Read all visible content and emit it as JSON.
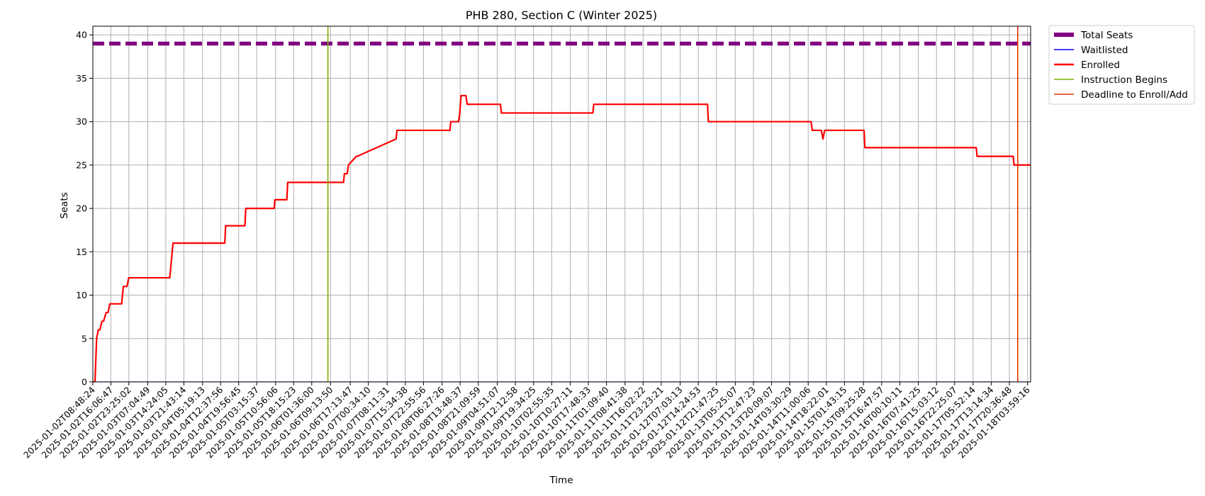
{
  "chart_data": {
    "type": "line",
    "title": "PHB 280, Section C (Winter 2025)",
    "xlabel": "Time",
    "ylabel": "Seats",
    "ylim": [
      0,
      41
    ],
    "yticks": [
      0,
      5,
      10,
      15,
      20,
      25,
      30,
      35,
      40
    ],
    "x_range": [
      "2025-01-02T08:48:24",
      "2025-01-18T05:14:00"
    ],
    "xtick_labels": [
      "2025-01-02T08:48:24",
      "2025-01-02T16:06:47",
      "2025-01-02T23:25:02",
      "2025-01-03T07:04:49",
      "2025-01-03T14:24:05",
      "2025-01-03T21:43:14",
      "2025-01-04T05:19:13",
      "2025-01-04T12:37:56",
      "2025-01-04T19:56:45",
      "2025-01-05T03:15:37",
      "2025-01-05T10:56:06",
      "2025-01-05T18:15:23",
      "2025-01-06T01:36:00",
      "2025-01-06T09:13:50",
      "2025-01-06T17:13:47",
      "2025-01-07T00:34:10",
      "2025-01-07T08:11:31",
      "2025-01-07T15:34:38",
      "2025-01-07T22:55:56",
      "2025-01-08T06:27:26",
      "2025-01-08T13:48:37",
      "2025-01-08T21:09:59",
      "2025-01-09T04:51:07",
      "2025-01-09T12:12:58",
      "2025-01-09T19:34:25",
      "2025-01-10T02:55:35",
      "2025-01-10T10:27:11",
      "2025-01-10T17:48:33",
      "2025-01-11T01:09:40",
      "2025-01-11T08:41:38",
      "2025-01-11T16:02:22",
      "2025-01-11T23:23:21",
      "2025-01-12T07:03:13",
      "2025-01-12T14:24:53",
      "2025-01-12T21:47:25",
      "2025-01-13T05:25:07",
      "2025-01-13T12:47:23",
      "2025-01-13T20:09:07",
      "2025-01-14T03:30:29",
      "2025-01-14T11:00:06",
      "2025-01-14T18:22:01",
      "2025-01-15T01:43:15",
      "2025-01-15T09:25:28",
      "2025-01-15T16:47:57",
      "2025-01-16T00:10:11",
      "2025-01-16T07:41:25",
      "2025-01-16T15:03:12",
      "2025-01-16T22:25:07",
      "2025-01-17T05:52:14",
      "2025-01-17T13:14:34",
      "2025-01-17T20:36:48",
      "2025-01-18T03:59:16"
    ],
    "grid": true,
    "legend_position": "outside-right-top",
    "series": [
      {
        "name": "Total Seats",
        "kind": "line",
        "color": "#800080",
        "style": "dashed",
        "x": [
          "2025-01-02T08:48:24",
          "2025-01-18T05:14:00"
        ],
        "y": [
          39,
          39
        ]
      },
      {
        "name": "Waitlisted",
        "kind": "line",
        "color": "#0000ff",
        "style": "solid",
        "x": [
          "2025-01-02T08:48:24",
          "2025-01-18T05:14:00"
        ],
        "y": [
          0,
          0
        ]
      },
      {
        "name": "Enrolled",
        "kind": "line",
        "color": "#ff0000",
        "style": "solid",
        "x": [
          "2025-01-02T08:48:24",
          "2025-01-02T09:40:00",
          "2025-01-02T10:20:00",
          "2025-01-02T11:00:00",
          "2025-01-02T11:40:00",
          "2025-01-02T12:30:00",
          "2025-01-02T13:10:00",
          "2025-01-02T14:10:00",
          "2025-01-02T15:00:00",
          "2025-01-02T15:40:00",
          "2025-01-02T16:30:00",
          "2025-01-02T17:30:00",
          "2025-01-02T18:00:00",
          "2025-01-02T20:30:00",
          "2025-01-02T21:10:00",
          "2025-01-02T22:40:00",
          "2025-01-02T23:20:00",
          "2025-01-03T16:00:00",
          "2025-01-03T16:40:00",
          "2025-01-03T17:20:00",
          "2025-01-04T14:20:00",
          "2025-01-04T14:40:00",
          "2025-01-04T22:30:00",
          "2025-01-04T22:50:00",
          "2025-01-05T10:20:00",
          "2025-01-05T10:40:00",
          "2025-01-05T15:30:00",
          "2025-01-05T15:50:00",
          "2025-01-06T10:40:00",
          "2025-01-06T11:00:00",
          "2025-01-06T14:30:00",
          "2025-01-06T14:50:00",
          "2025-01-06T16:00:00",
          "2025-01-06T16:30:00",
          "2025-01-06T19:40:00",
          "2025-01-06T20:00:00",
          "2025-01-07T11:50:00",
          "2025-01-07T12:10:00",
          "2025-01-08T09:40:00",
          "2025-01-08T10:00:00",
          "2025-01-08T13:10:00",
          "2025-01-08T13:40:00",
          "2025-01-08T14:10:00",
          "2025-01-08T14:40:00",
          "2025-01-08T16:10:00",
          "2025-01-08T16:40:00",
          "2025-01-08T18:40:00",
          "2025-01-08T19:00:00",
          "2025-01-09T06:10:00",
          "2025-01-09T06:30:00",
          "2025-01-10T19:40:00",
          "2025-01-10T20:00:00",
          "2025-01-12T18:10:00",
          "2025-01-12T18:30:00",
          "2025-01-14T12:10:00",
          "2025-01-14T12:40:00",
          "2025-01-14T16:20:00",
          "2025-01-14T17:00:00",
          "2025-01-14T17:40:00",
          "2025-01-15T09:40:00",
          "2025-01-15T10:00:00",
          "2025-01-17T07:10:00",
          "2025-01-17T07:30:00",
          "2025-01-17T22:10:00",
          "2025-01-17T22:30:00",
          "2025-01-18T05:14:00"
        ],
        "y": [
          0,
          0,
          5,
          6,
          6,
          7,
          7,
          8,
          8,
          9,
          9,
          9,
          9,
          9,
          11,
          11,
          12,
          12,
          14,
          16,
          16,
          18,
          18,
          20,
          20,
          21,
          21,
          23,
          23,
          23,
          23,
          24,
          24,
          25,
          26,
          26,
          28,
          29,
          29,
          30,
          30,
          31,
          33,
          33,
          33,
          32,
          32,
          32,
          32,
          31,
          31,
          32,
          32,
          30,
          30,
          29,
          29,
          28,
          29,
          29,
          27,
          27,
          26,
          26,
          25,
          25
        ]
      },
      {
        "name": "Instruction Begins",
        "kind": "vline",
        "color": "#7aaf00",
        "x": "2025-01-06T08:10:00"
      },
      {
        "name": "Deadline to Enroll/Add",
        "kind": "vline",
        "color": "#dd3300",
        "x": "2025-01-17T23:59:00"
      }
    ]
  }
}
